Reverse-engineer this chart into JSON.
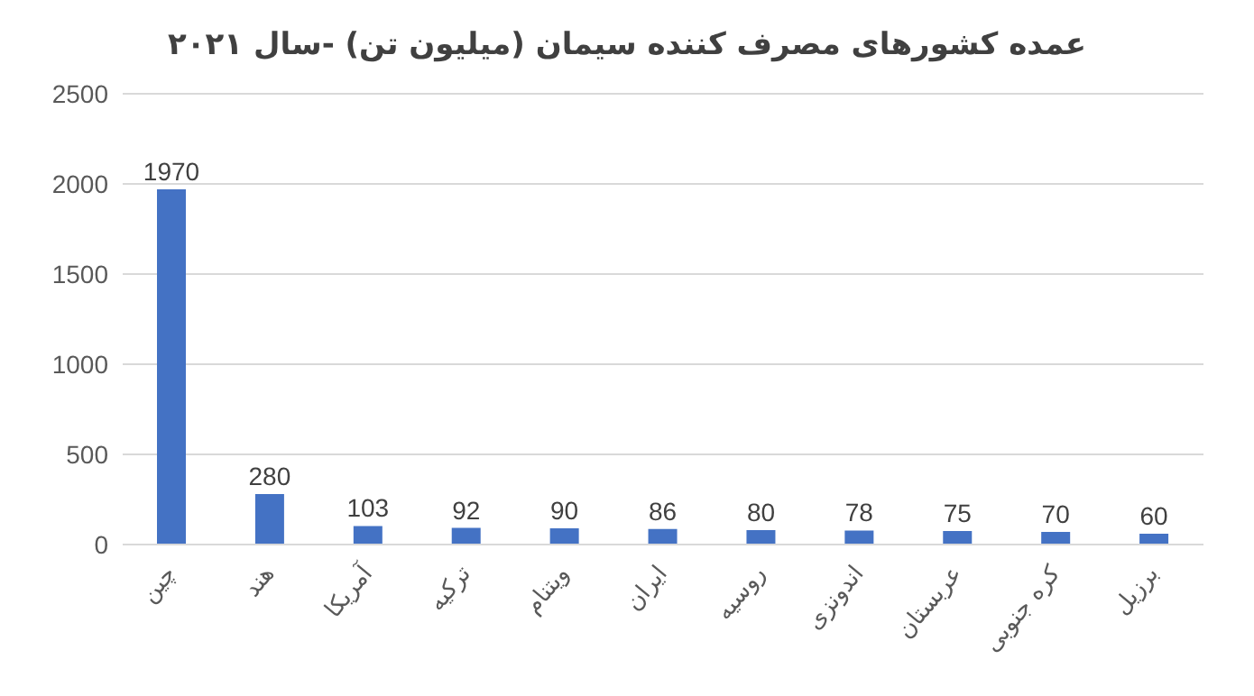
{
  "chart_data": {
    "type": "bar",
    "title": "عمده کشورهای مصرف کننده سیمان (میلیون تن) -سال ۲۰۲۱",
    "categories": [
      "چین",
      "هند",
      "آمریکا",
      "ترکیه",
      "ویتنام",
      "ایران",
      "روسیه",
      "اندونزی",
      "عربستان",
      "کره جنوبی",
      "برزیل"
    ],
    "values": [
      1970,
      280,
      103,
      92,
      90,
      86,
      80,
      78,
      75,
      70,
      60
    ],
    "color": "#4472c4",
    "ylim": [
      0,
      2500
    ],
    "yticks": [
      0,
      500,
      1000,
      1500,
      2000,
      2500
    ],
    "grid": "y",
    "data_labels": true
  }
}
